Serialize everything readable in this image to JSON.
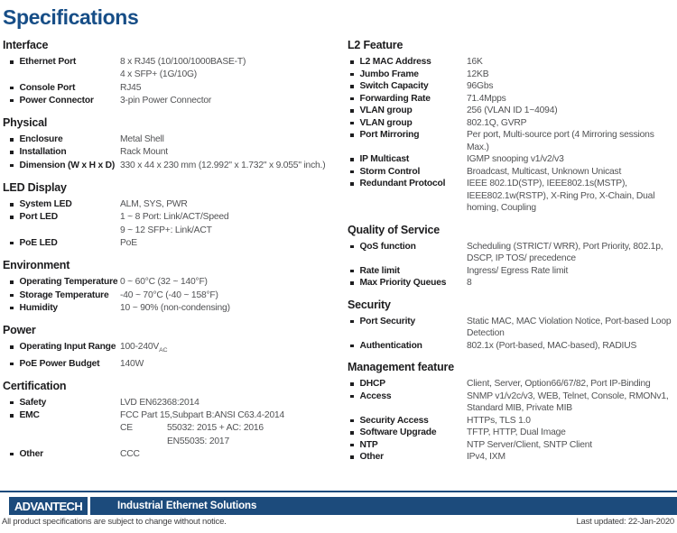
{
  "page": {
    "title": "Specifications"
  },
  "colors": {
    "title_blue": "#174e87",
    "footer_navy": "#1c4b7c",
    "label_dark": "#1d1d1f",
    "value_gray": "#515254"
  },
  "columns": {
    "left": {
      "sections": [
        {
          "heading": "Interface",
          "rows": [
            {
              "label": "Ethernet Port",
              "lines": [
                "8 x RJ45 (10/100/1000BASE-T)",
                "4 x SFP+ (1G/10G)"
              ]
            },
            {
              "label": "Console Port",
              "lines": [
                "RJ45"
              ]
            },
            {
              "label": "Power Connector",
              "lines": [
                "3-pin Power Connector"
              ]
            }
          ]
        },
        {
          "heading": "Physical",
          "rows": [
            {
              "label": "Enclosure",
              "lines": [
                "Metal Shell"
              ]
            },
            {
              "label": "Installation",
              "lines": [
                "Rack Mount"
              ]
            },
            {
              "label": "Dimension (W x H x D)",
              "lines": [
                "330 x 44 x 230 mm (12.992\" x 1.732\" x 9.055\" inch.)"
              ]
            }
          ]
        },
        {
          "heading": "LED Display",
          "rows": [
            {
              "label": "System LED",
              "lines": [
                "ALM, SYS, PWR"
              ]
            },
            {
              "label": "Port LED",
              "lines": [
                "1 ~ 8 Port: Link/ACT/Speed",
                "9 ~ 12 SFP+: Link/ACT"
              ]
            },
            {
              "label": "PoE LED",
              "lines": [
                "PoE"
              ]
            }
          ]
        },
        {
          "heading": "Environment",
          "rows": [
            {
              "label": "Operating Temperature",
              "lines": [
                "0 ~ 60°C (32 ~ 140°F)"
              ]
            },
            {
              "label": "Storage Temperature",
              "lines": [
                "-40 ~ 70°C (-40 ~ 158°F)"
              ]
            },
            {
              "label": "Humidity",
              "lines": [
                "10 ~ 90% (non-condensing)"
              ]
            }
          ]
        },
        {
          "heading": "Power",
          "rows": [
            {
              "label": "Operating Input Range",
              "lines": [
                {
                  "text": "100-240V",
                  "sub": "AC"
                }
              ]
            },
            {
              "label": "PoE Power Budget",
              "lines": [
                "140W"
              ]
            }
          ]
        },
        {
          "heading": "Certification",
          "rows": [
            {
              "label": "Safety",
              "lines": [
                "LVD EN62368:2014"
              ]
            },
            {
              "label": "EMC",
              "lines": [
                "FCC Part 15,Subpart B:ANSI C63.4-2014",
                {
                  "text": "CE",
                  "tab": "55032: 2015 + AC: 2016"
                },
                {
                  "indent": true,
                  "text": "EN55035: 2017"
                }
              ]
            },
            {
              "label": "Other",
              "lines": [
                "CCC"
              ]
            }
          ]
        }
      ]
    },
    "right": {
      "sections": [
        {
          "heading": "L2 Feature",
          "rows": [
            {
              "label": "L2 MAC Address",
              "lines": [
                "16K"
              ]
            },
            {
              "label": "Jumbo Frame",
              "lines": [
                "12KB"
              ]
            },
            {
              "label": "Switch Capacity",
              "lines": [
                "96Gbs"
              ]
            },
            {
              "label": "Forwarding Rate",
              "lines": [
                "71.4Mpps"
              ]
            },
            {
              "label": "VLAN group",
              "lines": [
                "256 (VLAN ID 1~4094)"
              ]
            },
            {
              "label": "VLAN group",
              "lines": [
                "802.1Q, GVRP"
              ]
            },
            {
              "label": "Port Mirroring",
              "lines": [
                "Per port, Multi-source port (4 Mirroring sessions",
                "Max.)"
              ]
            },
            {
              "label": "IP Multicast",
              "lines": [
                "IGMP snooping v1/v2/v3"
              ]
            },
            {
              "label": "Storm Control",
              "lines": [
                "Broadcast, Multicast, Unknown Unicast"
              ]
            },
            {
              "label": "Redundant Protocol",
              "lines": [
                "IEEE 802.1D(STP), IEEE802.1s(MSTP),",
                "IEEE802.1w(RSTP), X-Ring Pro, X-Chain, Dual",
                "homing, Coupling"
              ]
            }
          ]
        },
        {
          "heading": "Quality of Service",
          "rows": [
            {
              "label": "QoS function",
              "lines": [
                "Scheduling (STRICT/ WRR), Port Priority, 802.1p,",
                "DSCP, IP TOS/ precedence"
              ]
            },
            {
              "label": "Rate limit",
              "lines": [
                "Ingress/ Egress Rate limit"
              ]
            },
            {
              "label": "Max Priority Queues",
              "lines": [
                "8"
              ]
            }
          ]
        },
        {
          "heading": "Security",
          "rows": [
            {
              "label": "Port Security",
              "lines": [
                "Static MAC, MAC Violation Notice, Port-based Loop",
                "Detection"
              ]
            },
            {
              "label": "Authentication",
              "lines": [
                "802.1x (Port-based, MAC-based), RADIUS"
              ]
            }
          ]
        },
        {
          "heading": "Management feature",
          "rows": [
            {
              "label": "DHCP",
              "lines": [
                "Client, Server, Option66/67/82, Port IP-Binding"
              ]
            },
            {
              "label": "Access",
              "lines": [
                "SNMP v1/v2c/v3, WEB, Telnet, Console, RMONv1,",
                "Standard MIB, Private MIB"
              ]
            },
            {
              "label": "Security Access",
              "lines": [
                "HTTPs, TLS 1.0"
              ]
            },
            {
              "label": "Software Upgrade",
              "lines": [
                "TFTP, HTTP, Dual Image"
              ]
            },
            {
              "label": "NTP",
              "lines": [
                "NTP Server/Client, SNTP Client"
              ]
            },
            {
              "label": "Other",
              "lines": [
                "IPv4, IXM"
              ]
            }
          ]
        }
      ]
    }
  },
  "footer": {
    "logo_text": "ADVANTECH",
    "banner_text": "Industrial Ethernet Solutions",
    "note": "All product specifications are subject to change without notice.",
    "last_updated": "Last updated: 22-Jan-2020"
  }
}
